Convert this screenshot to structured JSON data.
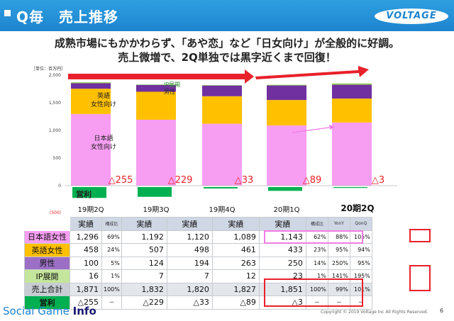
{
  "header": {
    "title": "Q毎　売上推移",
    "logo": "VOLTAGE"
  },
  "headline": {
    "line1": "成熟市場にもかかわらず、「あや恋」など「日女向け」が全般的に好調。",
    "line2": "売上微増で、2Q単独では黒字近くまで回復！"
  },
  "chart_data": {
    "type": "bar",
    "unit_label": "［単位：百万円］",
    "categories": [
      "19期2Q",
      "19期3Q",
      "19期4Q",
      "20期1Q",
      "20期2Q"
    ],
    "y_ticks": [
      "2,000",
      "1,500",
      "1,000",
      "500",
      "0",
      "(500)"
    ],
    "ylim": [
      -500,
      2000
    ],
    "series": [
      {
        "name": "日本語女性向け",
        "color": "#f79ef2",
        "values": [
          1296,
          1192,
          1120,
          1089,
          1143
        ]
      },
      {
        "name": "英語女性向け",
        "color": "#ffc000",
        "values": [
          458,
          507,
          498,
          461,
          433
        ]
      },
      {
        "name": "男性",
        "color": "#7030a0",
        "values": [
          100,
          124,
          194,
          263,
          250
        ]
      },
      {
        "name": "IP展開",
        "color": "#92d050",
        "values": [
          16,
          7,
          7,
          12,
          23
        ]
      }
    ],
    "profit": {
      "name": "営利",
      "color": "#00b050",
      "values": [
        -255,
        -229,
        -33,
        -89,
        -3
      ],
      "labels": [
        "△255",
        "△229",
        "△33",
        "△89",
        "△3"
      ]
    },
    "legend_labels": {
      "eng_line1": "英語",
      "eng_line2": "女性向け",
      "jp_line1": "日本語",
      "jp_line2": "女性向け",
      "ip": "IP展開",
      "male": "男性"
    },
    "profit_axis_label": "営利"
  },
  "table": {
    "headers": [
      "実績",
      "構成比",
      "実績",
      "実績",
      "実績",
      "実績",
      "構成比",
      "YonY",
      "QonQ"
    ],
    "rows": [
      {
        "label": "日本語女性",
        "color": "#f79ef2",
        "cells": [
          "1,296",
          "69%",
          "1,192",
          "1,120",
          "1,089",
          "1,143",
          "62%",
          "88%",
          "105%"
        ]
      },
      {
        "label": "英語女性",
        "color": "#ffc000",
        "cells": [
          "458",
          "24%",
          "507",
          "498",
          "461",
          "433",
          "23%",
          "95%",
          "94%"
        ]
      },
      {
        "label": "男性",
        "color": "#9b6fc5",
        "cells": [
          "100",
          "5%",
          "124",
          "194",
          "263",
          "250",
          "14%",
          "250%",
          "95%"
        ]
      },
      {
        "label": "IP展開",
        "color": "#c4e69c",
        "cells": [
          "16",
          "1%",
          "7",
          "7",
          "12",
          "23",
          "1%",
          "141%",
          "195%"
        ]
      },
      {
        "label": "売上合計",
        "color": "#c8cdd3",
        "cells": [
          "1,871",
          "100%",
          "1,832",
          "1,820",
          "1,827",
          "1,851",
          "100%",
          "99%",
          "101%"
        ]
      },
      {
        "label": "営利",
        "color": "#00b050",
        "cells": [
          "△255",
          "－",
          "△229",
          "△33",
          "△89",
          "△3",
          "－",
          "－",
          "－"
        ]
      }
    ]
  },
  "footer": {
    "brand_prefix": "Social Game ",
    "brand_suffix": "Info",
    "copyright": "Copyright © 2019 Voltage Inc  All Rights Reserved.",
    "page": "6"
  }
}
